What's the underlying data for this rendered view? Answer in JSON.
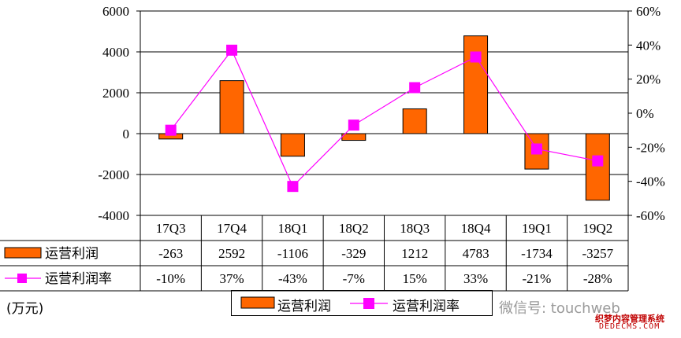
{
  "chart_data": {
    "type": "bar+line",
    "categories": [
      "17Q3",
      "17Q4",
      "18Q1",
      "18Q2",
      "18Q3",
      "18Q4",
      "19Q1",
      "19Q2"
    ],
    "series": [
      {
        "name": "运营利润",
        "type": "bar",
        "axis": "left",
        "values": [
          -263,
          2592,
          -1106,
          -329,
          1212,
          4783,
          -1734,
          -3257
        ],
        "labels": [
          "-263",
          "2592",
          "-1106",
          "-329",
          "1212",
          "4783",
          "-1734",
          "-3257"
        ]
      },
      {
        "name": "运营利润率",
        "type": "line",
        "axis": "right",
        "values": [
          -10,
          37,
          -43,
          -7,
          15,
          33,
          -21,
          -28
        ],
        "labels": [
          "-10%",
          "37%",
          "-43%",
          "-7%",
          "15%",
          "33%",
          "-21%",
          "-28%"
        ]
      }
    ],
    "y_left": {
      "min": -4000,
      "max": 6000,
      "ticks": [
        "-4000",
        "-2000",
        "0",
        "2000",
        "4000",
        "6000"
      ]
    },
    "y_right": {
      "min": -60,
      "max": 60,
      "ticks": [
        "-60%",
        "-40%",
        "-20%",
        "0%",
        "20%",
        "40%",
        "60%"
      ]
    },
    "unit_label": "(万元)",
    "grid": true,
    "legend_position": "bottom",
    "colors": {
      "bar": "#ff6600",
      "bar_edge": "#000000",
      "line": "#ff00ff",
      "grid": "#000000"
    }
  },
  "watermark": {
    "text": "微信号: touchweb",
    "logo": "织梦内容管理系统",
    "site": "DEDECMS.COM"
  }
}
